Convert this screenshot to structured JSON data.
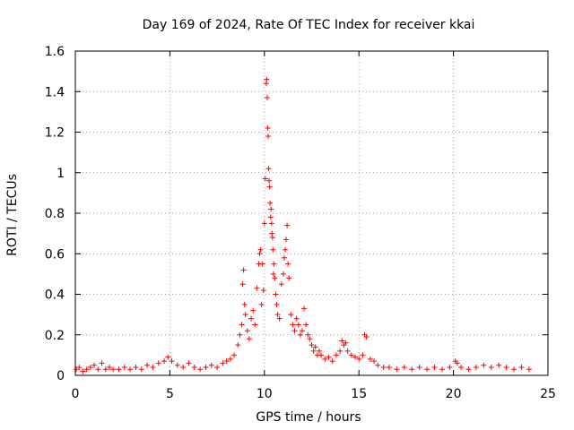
{
  "chart_data": {
    "type": "scatter",
    "title": "Day 169 of 2024, Rate Of TEC Index for receiver kkai",
    "xlabel": "GPS time / hours",
    "ylabel": "ROTI / TECUs",
    "xlim": [
      0,
      25
    ],
    "ylim": [
      0,
      1.6
    ],
    "xticks": [
      0,
      5,
      10,
      15,
      20,
      25
    ],
    "yticks": [
      0,
      0.2,
      0.4,
      0.6,
      0.8,
      1,
      1.2,
      1.4,
      1.6
    ],
    "xtick_labels": [
      "0",
      "5",
      "10",
      "15",
      "20",
      "25"
    ],
    "ytick_labels": [
      "0",
      "0.2",
      "0.4",
      "0.6",
      "0.8",
      "1",
      "1.2",
      "1.4",
      "1.6"
    ],
    "grid": true,
    "marker": "+",
    "color": "#ff0000",
    "series": [
      {
        "x": [
          0.05,
          0.2,
          0.4,
          0.6,
          0.8,
          1.0,
          1.2,
          1.4,
          1.6,
          1.8,
          2.0,
          2.3,
          2.6,
          2.9,
          3.2,
          3.5,
          3.8,
          4.1,
          4.4,
          4.7,
          4.9,
          5.1,
          5.4,
          5.7,
          6.0,
          6.3,
          6.6,
          6.9,
          7.2,
          7.5,
          7.8,
          8.0,
          8.2,
          8.4,
          8.6,
          8.7,
          8.8,
          8.85,
          8.9,
          8.95,
          9.0,
          9.1,
          9.2,
          9.3,
          9.4,
          9.5,
          9.6,
          9.7,
          9.75,
          9.8,
          9.85,
          9.9,
          9.95,
          10.0,
          10.05,
          10.1,
          10.12,
          10.15,
          10.18,
          10.2,
          10.22,
          10.25,
          10.28,
          10.3,
          10.33,
          10.35,
          10.38,
          10.4,
          10.43,
          10.45,
          10.48,
          10.5,
          10.55,
          10.6,
          10.65,
          10.7,
          10.8,
          10.9,
          11.0,
          11.05,
          11.1,
          11.15,
          11.2,
          11.25,
          11.3,
          11.4,
          11.5,
          11.6,
          11.7,
          11.8,
          11.9,
          12.0,
          12.1,
          12.2,
          12.3,
          12.4,
          12.5,
          12.6,
          12.7,
          12.8,
          12.9,
          13.0,
          13.2,
          13.4,
          13.6,
          13.8,
          14.0,
          14.1,
          14.2,
          14.3,
          14.4,
          14.6,
          14.8,
          15.0,
          15.2,
          15.3,
          15.4,
          15.6,
          15.8,
          16.0,
          16.3,
          16.6,
          17.0,
          17.4,
          17.8,
          18.2,
          18.6,
          19.0,
          19.4,
          19.8,
          20.1,
          20.2,
          20.4,
          20.8,
          21.2,
          21.6,
          22.0,
          22.4,
          22.8,
          23.2,
          23.6,
          24.0
        ],
        "y": [
          0.03,
          0.04,
          0.02,
          0.03,
          0.04,
          0.05,
          0.03,
          0.06,
          0.03,
          0.04,
          0.03,
          0.03,
          0.04,
          0.03,
          0.04,
          0.03,
          0.05,
          0.04,
          0.06,
          0.07,
          0.09,
          0.07,
          0.05,
          0.04,
          0.06,
          0.04,
          0.03,
          0.04,
          0.05,
          0.04,
          0.06,
          0.07,
          0.08,
          0.1,
          0.15,
          0.2,
          0.25,
          0.45,
          0.52,
          0.35,
          0.3,
          0.22,
          0.18,
          0.28,
          0.32,
          0.25,
          0.43,
          0.55,
          0.6,
          0.62,
          0.35,
          0.55,
          0.42,
          0.75,
          0.97,
          1.44,
          1.46,
          1.37,
          1.22,
          1.18,
          1.02,
          0.96,
          0.93,
          0.85,
          0.78,
          0.82,
          0.75,
          0.7,
          0.68,
          0.62,
          0.5,
          0.55,
          0.48,
          0.4,
          0.35,
          0.3,
          0.28,
          0.45,
          0.5,
          0.58,
          0.62,
          0.67,
          0.74,
          0.55,
          0.48,
          0.3,
          0.25,
          0.22,
          0.28,
          0.25,
          0.2,
          0.22,
          0.33,
          0.25,
          0.2,
          0.18,
          0.15,
          0.12,
          0.14,
          0.1,
          0.12,
          0.1,
          0.08,
          0.09,
          0.07,
          0.1,
          0.12,
          0.17,
          0.15,
          0.16,
          0.12,
          0.1,
          0.09,
          0.08,
          0.1,
          0.2,
          0.19,
          0.08,
          0.07,
          0.05,
          0.04,
          0.04,
          0.03,
          0.04,
          0.03,
          0.04,
          0.03,
          0.04,
          0.03,
          0.04,
          0.07,
          0.06,
          0.04,
          0.03,
          0.04,
          0.05,
          0.04,
          0.05,
          0.04,
          0.03,
          0.04,
          0.03
        ]
      }
    ]
  }
}
